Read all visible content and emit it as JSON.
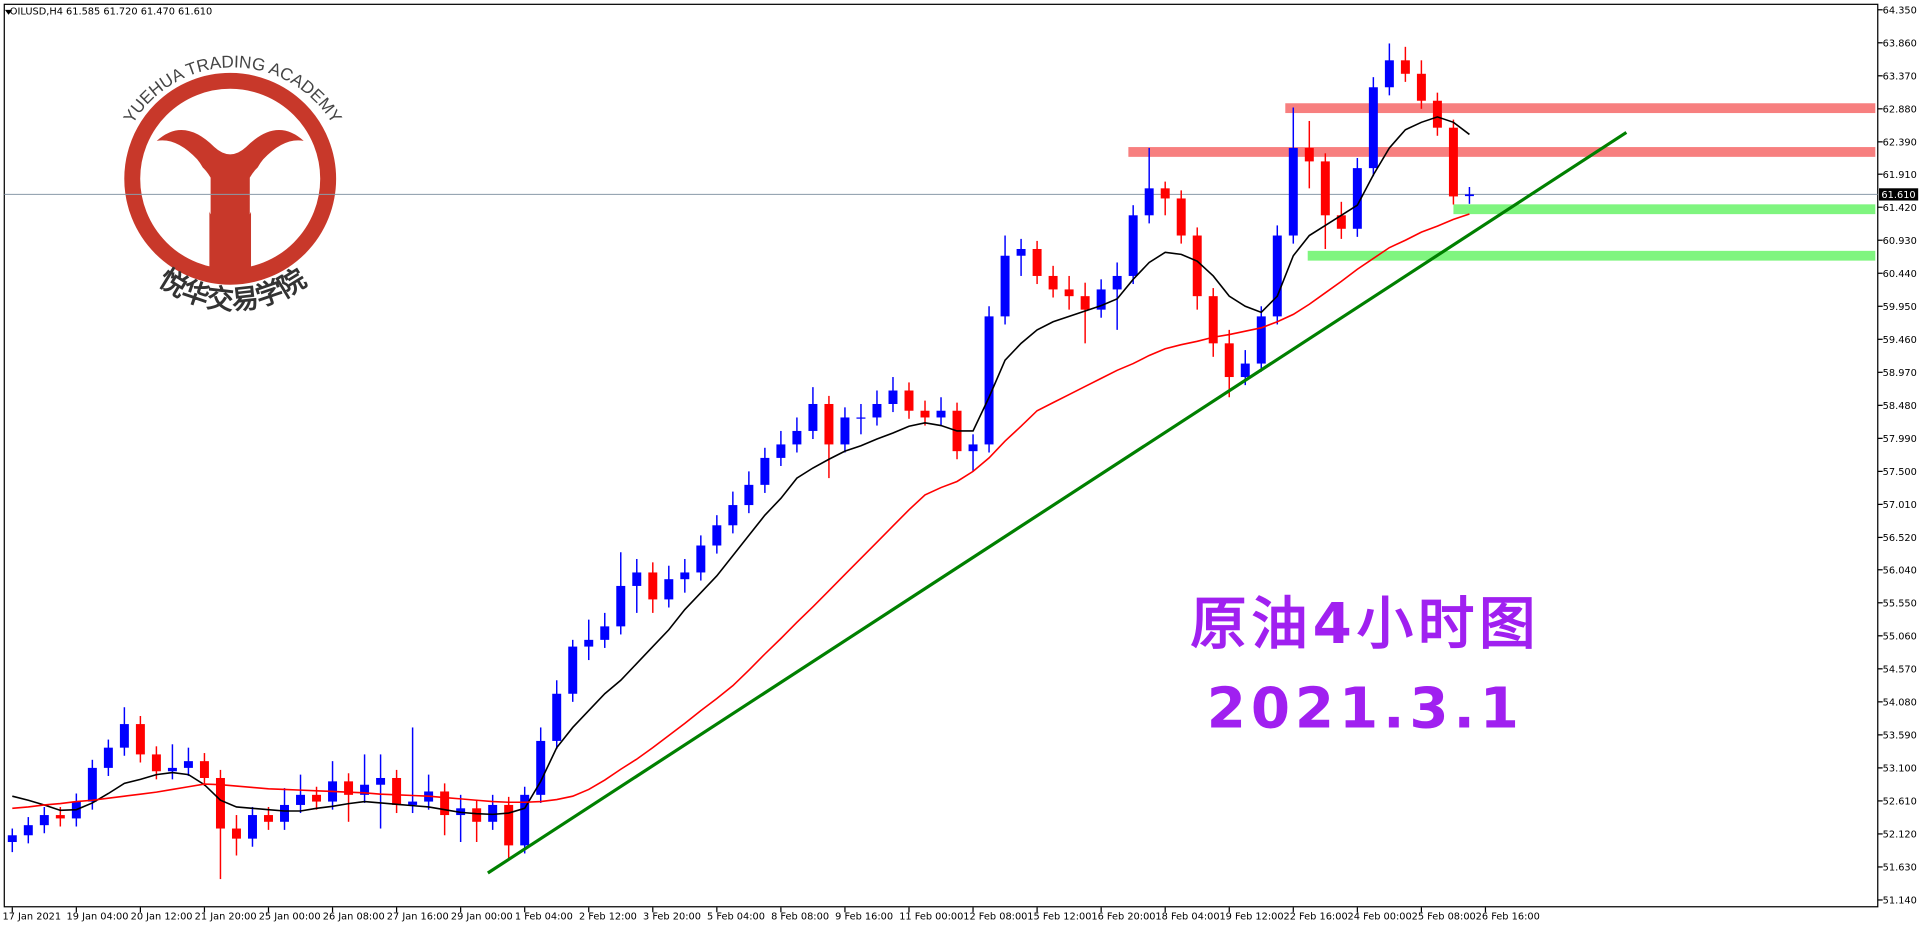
{
  "chart_data": {
    "type": "candlestick",
    "header": "OILUSD,H4  61.585 61.720 61.470 61.610",
    "bull_color": "#0000ff",
    "bear_color": "#ff0000",
    "candles": [
      [
        52.0,
        52.2,
        51.85,
        52.1
      ],
      [
        52.1,
        52.37,
        51.98,
        52.25
      ],
      [
        52.25,
        52.52,
        52.13,
        52.4
      ],
      [
        52.4,
        52.52,
        52.23,
        52.35
      ],
      [
        52.35,
        52.72,
        52.23,
        52.6
      ],
      [
        52.6,
        53.22,
        52.48,
        53.1
      ],
      [
        53.1,
        53.52,
        52.98,
        53.4
      ],
      [
        53.4,
        54.0,
        53.28,
        53.75
      ],
      [
        53.75,
        53.87,
        53.18,
        53.3
      ],
      [
        53.3,
        53.42,
        52.93,
        53.05
      ],
      [
        53.05,
        53.45,
        52.93,
        53.1
      ],
      [
        53.1,
        53.4,
        52.98,
        53.2
      ],
      [
        53.2,
        53.32,
        52.83,
        52.95
      ],
      [
        52.95,
        53.07,
        51.45,
        52.2
      ],
      [
        52.2,
        52.4,
        51.8,
        52.05
      ],
      [
        52.05,
        52.52,
        51.93,
        52.4
      ],
      [
        52.4,
        52.52,
        52.18,
        52.3
      ],
      [
        52.3,
        52.8,
        52.18,
        52.55
      ],
      [
        52.55,
        53.0,
        52.43,
        52.7
      ],
      [
        52.7,
        52.82,
        52.48,
        52.6
      ],
      [
        52.6,
        53.2,
        52.48,
        52.9
      ],
      [
        52.9,
        53.02,
        52.3,
        52.7
      ],
      [
        52.7,
        53.3,
        52.58,
        52.85
      ],
      [
        52.85,
        53.3,
        52.2,
        52.95
      ],
      [
        52.95,
        53.07,
        52.43,
        52.55
      ],
      [
        52.55,
        53.7,
        52.43,
        52.6
      ],
      [
        52.6,
        53.0,
        52.48,
        52.75
      ],
      [
        52.75,
        52.87,
        52.1,
        52.4
      ],
      [
        52.4,
        52.7,
        52.0,
        52.5
      ],
      [
        52.5,
        52.62,
        52.0,
        52.3
      ],
      [
        52.3,
        52.7,
        52.18,
        52.55
      ],
      [
        52.55,
        52.67,
        51.75,
        51.95
      ],
      [
        51.95,
        52.82,
        51.83,
        52.7
      ],
      [
        52.7,
        53.7,
        52.58,
        53.5
      ],
      [
        53.5,
        54.4,
        53.38,
        54.2
      ],
      [
        54.2,
        55.0,
        54.08,
        54.9
      ],
      [
        54.9,
        55.3,
        54.7,
        55.0
      ],
      [
        55.0,
        55.4,
        54.88,
        55.2
      ],
      [
        55.2,
        56.3,
        55.08,
        55.8
      ],
      [
        55.8,
        56.2,
        55.4,
        56.0
      ],
      [
        56.0,
        56.15,
        55.4,
        55.6
      ],
      [
        55.6,
        56.1,
        55.48,
        55.9
      ],
      [
        55.9,
        56.2,
        55.7,
        56.0
      ],
      [
        56.0,
        56.55,
        55.88,
        56.4
      ],
      [
        56.4,
        56.85,
        56.28,
        56.7
      ],
      [
        56.7,
        57.2,
        56.58,
        57.0
      ],
      [
        57.0,
        57.5,
        56.88,
        57.3
      ],
      [
        57.3,
        57.85,
        57.18,
        57.7
      ],
      [
        57.7,
        58.1,
        57.58,
        57.9
      ],
      [
        57.9,
        58.3,
        57.78,
        58.1
      ],
      [
        58.1,
        58.75,
        57.98,
        58.5
      ],
      [
        58.5,
        58.62,
        57.4,
        57.9
      ],
      [
        57.9,
        58.45,
        57.78,
        58.3
      ],
      [
        58.3,
        58.5,
        58.05,
        58.3
      ],
      [
        58.3,
        58.7,
        58.18,
        58.5
      ],
      [
        58.5,
        58.9,
        58.38,
        58.7
      ],
      [
        58.7,
        58.82,
        58.28,
        58.4
      ],
      [
        58.4,
        58.55,
        58.18,
        58.3
      ],
      [
        58.3,
        58.6,
        58.18,
        58.4
      ],
      [
        58.4,
        58.52,
        57.68,
        57.8
      ],
      [
        57.8,
        58.05,
        57.5,
        57.9
      ],
      [
        57.9,
        59.95,
        57.78,
        59.8
      ],
      [
        59.8,
        61.0,
        59.68,
        60.7
      ],
      [
        60.7,
        60.95,
        60.4,
        60.8
      ],
      [
        60.8,
        60.92,
        60.28,
        60.4
      ],
      [
        60.4,
        60.55,
        60.08,
        60.2
      ],
      [
        60.2,
        60.4,
        59.9,
        60.1
      ],
      [
        60.1,
        60.3,
        59.4,
        59.9
      ],
      [
        59.9,
        60.35,
        59.78,
        60.2
      ],
      [
        60.2,
        60.6,
        59.6,
        60.4
      ],
      [
        60.4,
        61.45,
        60.28,
        61.3
      ],
      [
        61.3,
        62.3,
        61.18,
        61.7
      ],
      [
        61.7,
        61.8,
        61.3,
        61.55
      ],
      [
        61.55,
        61.67,
        60.88,
        61.0
      ],
      [
        61.0,
        61.12,
        59.9,
        60.1
      ],
      [
        60.1,
        60.22,
        59.2,
        59.4
      ],
      [
        59.4,
        59.6,
        58.6,
        58.9
      ],
      [
        58.9,
        59.3,
        58.78,
        59.1
      ],
      [
        59.1,
        59.95,
        58.98,
        59.8
      ],
      [
        59.8,
        61.15,
        59.68,
        61.0
      ],
      [
        61.0,
        62.9,
        60.88,
        62.3
      ],
      [
        62.3,
        62.7,
        61.7,
        62.1
      ],
      [
        62.1,
        62.22,
        60.8,
        61.3
      ],
      [
        61.3,
        61.5,
        60.95,
        61.1
      ],
      [
        61.1,
        62.15,
        60.98,
        62.0
      ],
      [
        62.0,
        63.35,
        61.88,
        63.2
      ],
      [
        63.2,
        63.85,
        63.08,
        63.6
      ],
      [
        63.6,
        63.8,
        63.28,
        63.4
      ],
      [
        63.4,
        63.6,
        62.88,
        63.0
      ],
      [
        63.0,
        63.12,
        62.48,
        62.6
      ],
      [
        62.6,
        62.72,
        61.46,
        61.58
      ],
      [
        61.585,
        61.72,
        61.47,
        61.61
      ]
    ],
    "moving_averages": [
      {
        "color": "#000000",
        "values": [
          52.68,
          52.62,
          52.55,
          52.47,
          52.48,
          52.58,
          52.72,
          52.87,
          52.93,
          53.0,
          53.03,
          53.0,
          52.85,
          52.62,
          52.52,
          52.5,
          52.48,
          52.46,
          52.46,
          52.5,
          52.53,
          52.57,
          52.6,
          52.58,
          52.56,
          52.54,
          52.52,
          52.48,
          52.44,
          52.42,
          52.41,
          52.43,
          52.5,
          52.9,
          53.4,
          53.7,
          53.95,
          54.2,
          54.4,
          54.65,
          54.9,
          55.15,
          55.45,
          55.7,
          55.95,
          56.25,
          56.55,
          56.85,
          57.1,
          57.4,
          57.55,
          57.68,
          57.8,
          57.88,
          57.98,
          58.07,
          58.17,
          58.22,
          58.18,
          58.1,
          58.1,
          58.6,
          59.15,
          59.4,
          59.6,
          59.72,
          59.8,
          59.88,
          59.96,
          60.06,
          60.35,
          60.6,
          60.75,
          60.72,
          60.62,
          60.4,
          60.1,
          59.95,
          59.86,
          60.1,
          60.7,
          61.0,
          61.15,
          61.3,
          61.45,
          61.9,
          62.3,
          62.57,
          62.68,
          62.76,
          62.68,
          62.5
        ]
      },
      {
        "color": "#ff0000",
        "values": [
          52.5,
          52.52,
          52.55,
          52.57,
          52.6,
          52.62,
          52.65,
          52.68,
          52.71,
          52.74,
          52.78,
          52.82,
          52.86,
          52.85,
          52.83,
          52.81,
          52.79,
          52.78,
          52.77,
          52.76,
          52.75,
          52.74,
          52.73,
          52.71,
          52.7,
          52.69,
          52.68,
          52.66,
          52.64,
          52.62,
          52.6,
          52.59,
          52.59,
          52.6,
          52.63,
          52.68,
          52.78,
          52.92,
          53.08,
          53.23,
          53.4,
          53.58,
          53.76,
          53.95,
          54.13,
          54.32,
          54.55,
          54.79,
          55.02,
          55.26,
          55.49,
          55.73,
          55.97,
          56.21,
          56.45,
          56.69,
          56.93,
          57.15,
          57.26,
          57.35,
          57.5,
          57.7,
          57.95,
          58.17,
          58.4,
          58.52,
          58.64,
          58.76,
          58.88,
          59.0,
          59.1,
          59.22,
          59.32,
          59.38,
          59.43,
          59.49,
          59.53,
          59.58,
          59.63,
          59.72,
          59.83,
          59.98,
          60.15,
          60.32,
          60.5,
          60.66,
          60.82,
          60.93,
          61.05,
          61.14,
          61.24,
          61.32
        ]
      }
    ],
    "levels": [
      {
        "price": 62.89,
        "from": 79.5,
        "color": "#f77f7f"
      },
      {
        "price": 62.24,
        "from": 69.7,
        "color": "#f77f7f"
      },
      {
        "price": 61.39,
        "from": 90,
        "color": "#7ff57f"
      },
      {
        "price": 60.7,
        "from": 80.9,
        "color": "#7ff57f"
      }
    ],
    "trendline": {
      "from": [
        29.7,
        51.54
      ],
      "to": [
        100.8,
        62.53
      ],
      "color": "#008000"
    },
    "current_price": {
      "value": 61.61,
      "label": "61.610"
    },
    "annotations": [
      "原油4小时图",
      "2021.3.1"
    ],
    "logo": {
      "name_en": "YUEHUA TRADING ACADEMY",
      "name_cn": "悦华交易学院"
    },
    "xlim": [
      -0.5,
      116.5
    ],
    "xticks": [
      {
        "value": 0,
        "label": "17 Jan 2021"
      },
      {
        "value": 4,
        "label": "19 Jan 04:00"
      },
      {
        "value": 8,
        "label": "20 Jan 12:00"
      },
      {
        "value": 12,
        "label": "21 Jan 20:00"
      },
      {
        "value": 16,
        "label": "25 Jan 00:00"
      },
      {
        "value": 20,
        "label": "26 Jan 08:00"
      },
      {
        "value": 24,
        "label": "27 Jan 16:00"
      },
      {
        "value": 28,
        "label": "29 Jan 00:00"
      },
      {
        "value": 32,
        "label": "1 Feb 04:00"
      },
      {
        "value": 36,
        "label": "2 Feb 12:00"
      },
      {
        "value": 40,
        "label": "3 Feb 20:00"
      },
      {
        "value": 44,
        "label": "5 Feb 04:00"
      },
      {
        "value": 48,
        "label": "8 Feb 08:00"
      },
      {
        "value": 52,
        "label": "9 Feb 16:00"
      },
      {
        "value": 56,
        "label": "11 Feb 00:00"
      },
      {
        "value": 60,
        "label": "12 Feb 08:00"
      },
      {
        "value": 64,
        "label": "15 Feb 12:00"
      },
      {
        "value": 68,
        "label": "16 Feb 20:00"
      },
      {
        "value": 72,
        "label": "18 Feb 04:00"
      },
      {
        "value": 76,
        "label": "19 Feb 12:00"
      },
      {
        "value": 80,
        "label": "22 Feb 16:00"
      },
      {
        "value": 84,
        "label": "24 Feb 00:00"
      },
      {
        "value": 88,
        "label": "25 Feb 08:00"
      },
      {
        "value": 92,
        "label": "26 Feb 16:00"
      }
    ],
    "ylim": [
      51.03,
      64.44
    ],
    "yticks": [
      {
        "value": 64.35,
        "label": "64.350"
      },
      {
        "value": 63.86,
        "label": "63.860"
      },
      {
        "value": 63.37,
        "label": "63.370"
      },
      {
        "value": 62.88,
        "label": "62.880"
      },
      {
        "value": 62.39,
        "label": "62.390"
      },
      {
        "value": 61.91,
        "label": "61.910"
      },
      {
        "value": 61.42,
        "label": "61.420"
      },
      {
        "value": 60.93,
        "label": "60.930"
      },
      {
        "value": 60.44,
        "label": "60.440"
      },
      {
        "value": 59.95,
        "label": "59.950"
      },
      {
        "value": 59.46,
        "label": "59.460"
      },
      {
        "value": 58.97,
        "label": "58.970"
      },
      {
        "value": 58.48,
        "label": "58.480"
      },
      {
        "value": 57.99,
        "label": "57.990"
      },
      {
        "value": 57.5,
        "label": "57.500"
      },
      {
        "value": 57.01,
        "label": "57.010"
      },
      {
        "value": 56.52,
        "label": "56.520"
      },
      {
        "value": 56.04,
        "label": "56.040"
      },
      {
        "value": 55.55,
        "label": "55.550"
      },
      {
        "value": 55.06,
        "label": "55.060"
      },
      {
        "value": 54.57,
        "label": "54.570"
      },
      {
        "value": 54.08,
        "label": "54.080"
      },
      {
        "value": 53.59,
        "label": "53.590"
      },
      {
        "value": 53.1,
        "label": "53.100"
      },
      {
        "value": 52.61,
        "label": "52.610"
      },
      {
        "value": 52.12,
        "label": "52.120"
      },
      {
        "value": 51.63,
        "label": "51.630"
      },
      {
        "value": 51.14,
        "label": "51.140"
      }
    ]
  }
}
